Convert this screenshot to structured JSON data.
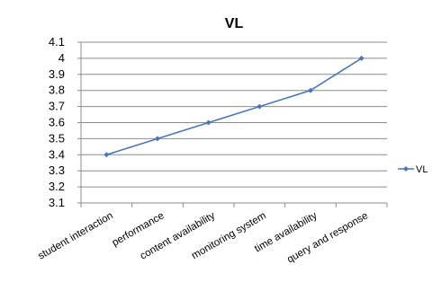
{
  "chart_data": {
    "type": "line",
    "title": "VL",
    "categories": [
      "student interaction",
      "performance",
      "content availability",
      "monitoring system",
      "time availability",
      "query and response"
    ],
    "series": [
      {
        "name": "VL",
        "values": [
          3.4,
          3.5,
          3.6,
          3.7,
          3.8,
          4.0
        ],
        "color": "#4a76b8"
      }
    ],
    "ylim": [
      3.1,
      4.1
    ],
    "yticks": [
      "3.1",
      "3.2",
      "3.3",
      "3.4",
      "3.5",
      "3.6",
      "3.7",
      "3.8",
      "3.9",
      "4",
      "4.1"
    ],
    "xlabel": "",
    "ylabel": "",
    "grid": true,
    "legend_position": "right"
  }
}
